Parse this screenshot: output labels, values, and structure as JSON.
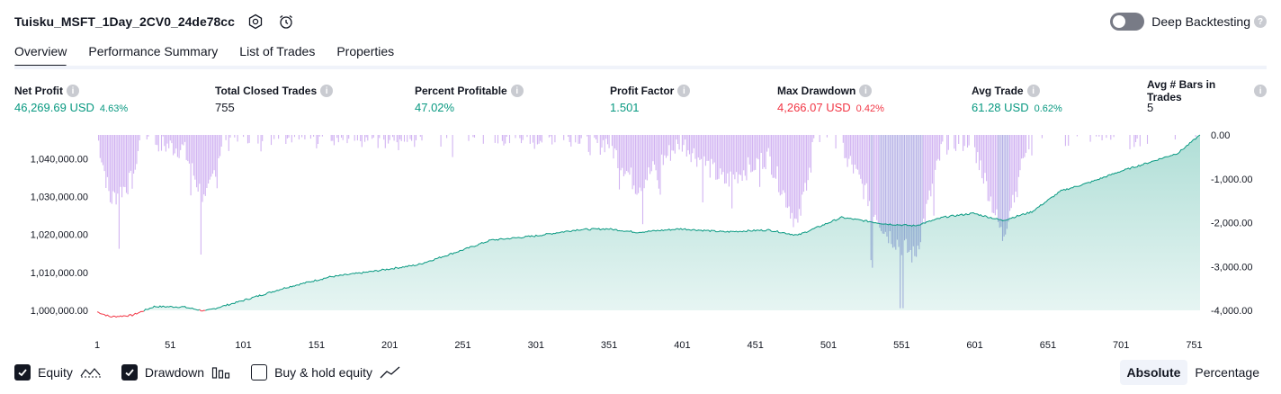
{
  "header": {
    "title": "Tuisku_MSFT_1Day_2CV0_24de78cc",
    "deep_backtesting_label": "Deep Backtesting",
    "deep_backtesting_enabled": false
  },
  "tabs": [
    {
      "label": "Overview",
      "active": true
    },
    {
      "label": "Performance Summary",
      "active": false
    },
    {
      "label": "List of Trades",
      "active": false
    },
    {
      "label": "Properties",
      "active": false
    }
  ],
  "metrics": [
    {
      "label": "Net Profit",
      "value": "46,269.69 USD",
      "pct": "4.63%",
      "color": "#089981"
    },
    {
      "label": "Total Closed Trades",
      "value": "755",
      "pct": "",
      "color": "#131722"
    },
    {
      "label": "Percent Profitable",
      "value": "47.02%",
      "pct": "",
      "color": "#089981"
    },
    {
      "label": "Profit Factor",
      "value": "1.501",
      "pct": "",
      "color": "#089981"
    },
    {
      "label": "Max Drawdown",
      "value": "4,266.07 USD",
      "pct": "0.42%",
      "color": "#f23645"
    },
    {
      "label": "Avg Trade",
      "value": "61.28 USD",
      "pct": "0.62%",
      "color": "#089981"
    },
    {
      "label": "Avg # Bars in Trades",
      "value": "5",
      "pct": "",
      "color": "#131722"
    }
  ],
  "chart_data": {
    "type": "area",
    "x_ticks": [
      "1",
      "51",
      "101",
      "151",
      "201",
      "251",
      "301",
      "351",
      "401",
      "451",
      "501",
      "551",
      "601",
      "651",
      "701",
      "751"
    ],
    "x_range": [
      1,
      755
    ],
    "equity_axis": {
      "ticks": [
        "1,000,000.00",
        "1,010,000.00",
        "1,020,000.00",
        "1,030,000.00",
        "1,040,000.00"
      ],
      "range": [
        1000000,
        1046270
      ]
    },
    "drawdown_axis": {
      "ticks": [
        "0.00",
        "-1,000.00",
        "-2,000.00",
        "-3,000.00",
        "-4,000.00"
      ],
      "range": [
        -4000,
        0
      ]
    },
    "equity_series": {
      "name": "Equity",
      "color": "#089981",
      "loss_color": "#f23645",
      "points": [
        [
          1,
          999600
        ],
        [
          10,
          998300
        ],
        [
          25,
          998700
        ],
        [
          40,
          1001000
        ],
        [
          60,
          1000900
        ],
        [
          75,
          999800
        ],
        [
          100,
          1002500
        ],
        [
          130,
          1006000
        ],
        [
          160,
          1008800
        ],
        [
          190,
          1010300
        ],
        [
          220,
          1012000
        ],
        [
          250,
          1015800
        ],
        [
          270,
          1018500
        ],
        [
          300,
          1019600
        ],
        [
          330,
          1021300
        ],
        [
          350,
          1021500
        ],
        [
          370,
          1020600
        ],
        [
          400,
          1021500
        ],
        [
          430,
          1020700
        ],
        [
          460,
          1021200
        ],
        [
          480,
          1019800
        ],
        [
          510,
          1024500
        ],
        [
          540,
          1022800
        ],
        [
          560,
          1022300
        ],
        [
          580,
          1024600
        ],
        [
          600,
          1025600
        ],
        [
          620,
          1023700
        ],
        [
          640,
          1026000
        ],
        [
          660,
          1031500
        ],
        [
          680,
          1033800
        ],
        [
          700,
          1036600
        ],
        [
          720,
          1039000
        ],
        [
          740,
          1041500
        ],
        [
          755,
          1046270
        ]
      ]
    },
    "drawdown_series": {
      "name": "Drawdown",
      "color": "#d1b3f2",
      "underwater_color": "#b5b1e6"
    }
  },
  "legend": [
    {
      "label": "Equity",
      "checked": true,
      "icon": "equity-line-icon"
    },
    {
      "label": "Drawdown",
      "checked": true,
      "icon": "drawdown-bars-icon"
    },
    {
      "label": "Buy & hold equity",
      "checked": false,
      "icon": "buy-hold-line-icon"
    }
  ],
  "modes": {
    "absolute_label": "Absolute",
    "percentage_label": "Percentage",
    "selected": "Absolute"
  }
}
